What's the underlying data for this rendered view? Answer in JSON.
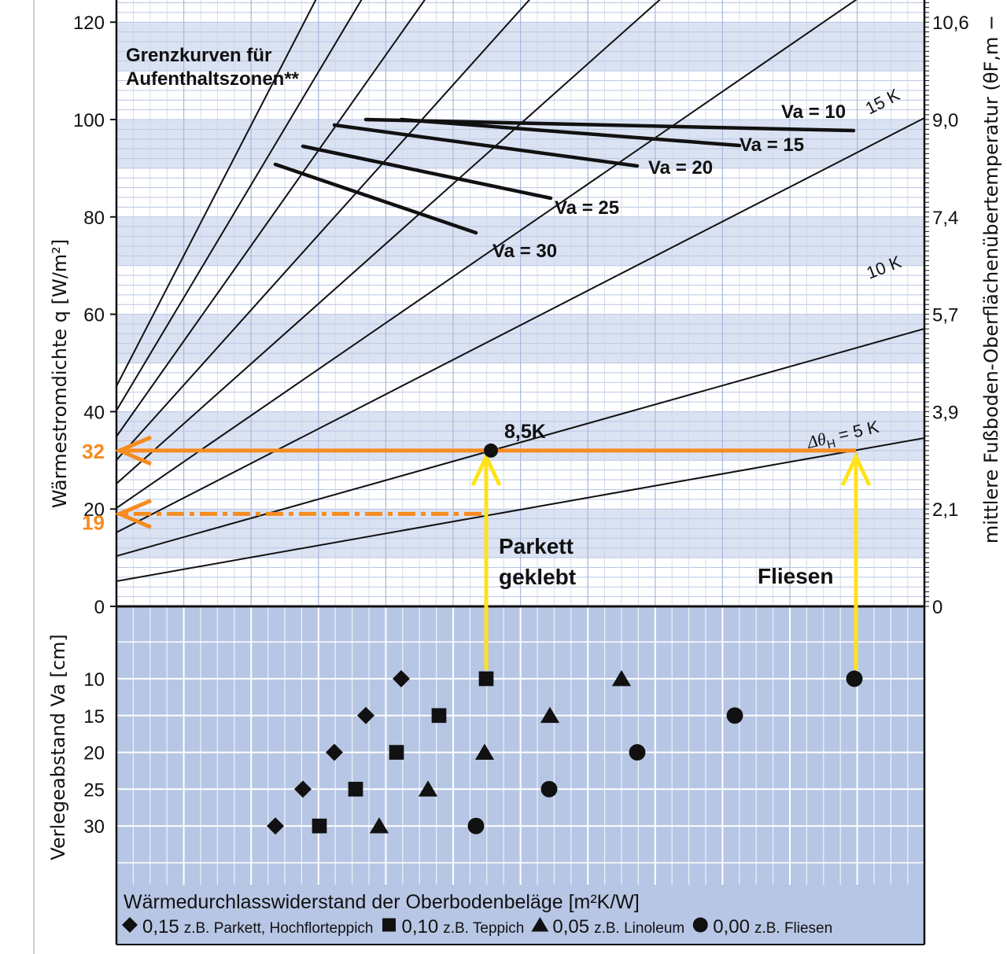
{
  "chart_data": {
    "type": "line",
    "title": "Grenzkurven für Aufenthaltszonen**",
    "top_chart": {
      "ylabel_left": "Wärmestromdichte q [W/m²]",
      "ylabel_right": "mittlere Fußboden-Oberflächenübertemperatur (θF,m −",
      "ylim": [
        0,
        120
      ],
      "left_ticks": [
        "0",
        "20",
        "40",
        "60",
        "80",
        "100",
        "120"
      ],
      "right_ticks": [
        "0",
        "2,1",
        "3,9",
        "5,7",
        "7,4",
        "9,0",
        "10,6"
      ],
      "delta_labels": {
        "k5": "Δθ",
        "k5_sub": "H",
        "k5_rest": " = 5 K",
        "k10": "10 K",
        "k15": "15 K"
      },
      "va_curves": [
        {
          "label": "Va = 10",
          "points": [
            [
              465,
              152
            ],
            [
              1085,
              166
            ]
          ]
        },
        {
          "label": "Va = 15",
          "points": [
            [
              510,
              152
            ],
            [
              940,
              185
            ]
          ]
        },
        {
          "label": "Va = 20",
          "points": [
            [
              425,
              159
            ],
            [
              810,
              211
            ]
          ]
        },
        {
          "label": "Va = 25",
          "points": [
            [
              385,
              186
            ],
            [
              700,
              252
            ]
          ]
        },
        {
          "label": "Va = 30",
          "points": [
            [
              350,
              209
            ],
            [
              605,
              296
            ]
          ]
        }
      ],
      "reading": {
        "q_main": "32",
        "q_secondary": "19",
        "point_label": "8,5K",
        "parkett_line1": "Parkett",
        "parkett_line2": "geklebt",
        "fliesen": "Fliesen"
      }
    },
    "bottom_chart": {
      "ylabel": "Verlegeabstand Va [cm]",
      "va_ticks": [
        "10",
        "15",
        "20",
        "25",
        "30"
      ],
      "xlabel": "Wärmedurchlasswiderstand der Oberbodenbeläge [m²K/W]",
      "series": [
        {
          "name": "0,15",
          "marker": "diamond",
          "example": "z.B. Parkett, Hochflorteppich",
          "points": [
            {
              "va": 10,
              "x": 510
            },
            {
              "va": 15,
              "x": 465
            },
            {
              "va": 20,
              "x": 425
            },
            {
              "va": 25,
              "x": 385
            },
            {
              "va": 30,
              "x": 350
            }
          ]
        },
        {
          "name": "0,10",
          "marker": "square",
          "example": "z.B. Teppich",
          "points": [
            {
              "va": 10,
              "x": 618
            },
            {
              "va": 15,
              "x": 558
            },
            {
              "va": 20,
              "x": 504
            },
            {
              "va": 25,
              "x": 452
            },
            {
              "va": 30,
              "x": 406
            }
          ]
        },
        {
          "name": "0,05",
          "marker": "triangle",
          "example": "z.B. Linoleum",
          "points": [
            {
              "va": 10,
              "x": 790
            },
            {
              "va": 15,
              "x": 699
            },
            {
              "va": 20,
              "x": 616
            },
            {
              "va": 25,
              "x": 544
            },
            {
              "va": 30,
              "x": 482
            }
          ]
        },
        {
          "name": "0,00",
          "marker": "circle",
          "example": "z.B. Fliesen",
          "points": [
            {
              "va": 10,
              "x": 1086
            },
            {
              "va": 15,
              "x": 934
            },
            {
              "va": 20,
              "x": 810
            },
            {
              "va": 25,
              "x": 698
            },
            {
              "va": 30,
              "x": 605
            }
          ]
        }
      ]
    },
    "colors": {
      "band": "#dbe3f3",
      "bottom_bg": "#b7c6e4",
      "orange": "#f68b1f",
      "yellow": "#ffe21a",
      "ink": "#111111"
    }
  }
}
